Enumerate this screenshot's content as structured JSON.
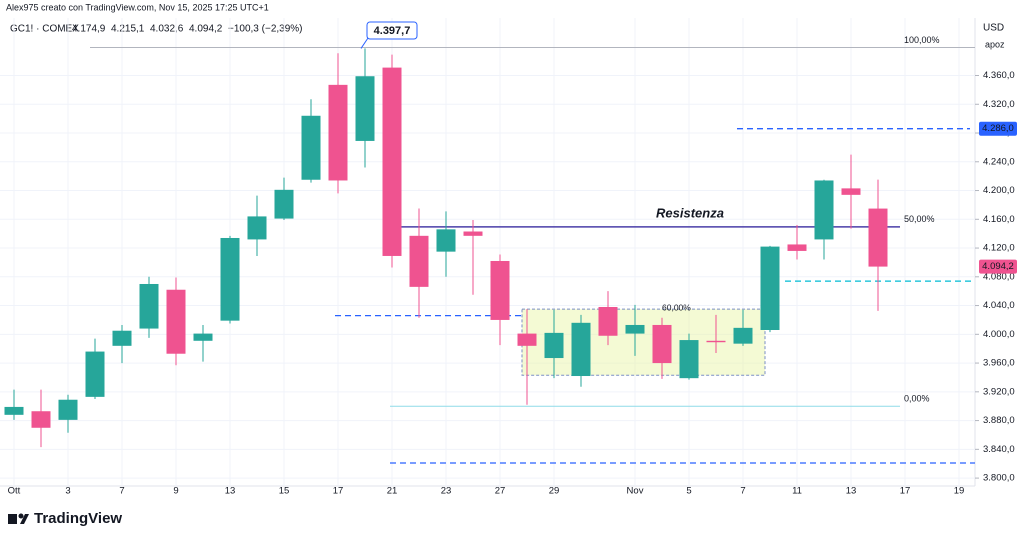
{
  "chart_data": {
    "type": "candlestick",
    "author": "Alex975 creato con TradingView.com, Nov 15, 2025 17:25 UTC+1",
    "title": "GC1! · COMEX",
    "ohlc_text": [
      "4.174,9",
      "4.215,1",
      "4.032,6",
      "4.094,2"
    ],
    "change_text": "−100,3 (−2,39%)",
    "currency": "USD",
    "scale_label": "apoz",
    "brand": "TradingView",
    "up_color": "#26a69a",
    "down_color": "#ef5390",
    "categories": [
      "Ott",
      null,
      "3",
      null,
      "7",
      null,
      "9",
      null,
      "13",
      null,
      "15",
      null,
      "17",
      null,
      "21",
      null,
      "23",
      null,
      "27",
      null,
      "29",
      null,
      null,
      "Nov",
      null,
      "5",
      null,
      "7",
      null,
      "11",
      null,
      "13",
      null,
      "17",
      null,
      "19"
    ],
    "open": [
      3888,
      3893,
      3881,
      3913,
      3984,
      4008,
      4062,
      3991,
      4019,
      4132,
      4161,
      4215,
      4347,
      4269,
      4371,
      4137,
      4115,
      4143,
      4102,
      4001,
      3967,
      3942,
      4038,
      4001,
      4013,
      3939,
      3991,
      3987,
      4006,
      4125,
      4132,
      4203,
      4174.9,
      null,
      null,
      null
    ],
    "high": [
      3923,
      3923,
      3916,
      3994,
      4013,
      4080,
      4079,
      4013,
      4137,
      4193,
      4218,
      4327,
      4391,
      4397.7,
      4389,
      4175,
      4171,
      4159,
      4111,
      4035,
      4034,
      4027,
      4060,
      4041,
      4023,
      4001,
      4027,
      4034,
      4123,
      4152,
      4215,
      4250,
      4215.1,
      null,
      null,
      null
    ],
    "low": [
      3881,
      3843,
      3863,
      3910,
      3960,
      3995,
      3957,
      3962,
      4015,
      4109,
      4159,
      4211,
      4196,
      4232,
      4093,
      4023,
      4080,
      4055,
      3985,
      3902,
      3939,
      3927,
      3985,
      3970,
      3938,
      3937,
      3974,
      3984,
      4003,
      4104,
      4104,
      4147,
      4032.6,
      null,
      null,
      null
    ],
    "close": [
      3899,
      3870,
      3909,
      3976,
      4005,
      4070,
      3973,
      4001,
      4134,
      4164,
      4201,
      4304,
      4214,
      4359,
      4109,
      4066,
      4146,
      4137,
      4020,
      3984,
      4002,
      4016,
      3998,
      4013,
      3960,
      3992,
      3989,
      4009,
      4122,
      4116,
      4214,
      4194,
      4094.2,
      null,
      null,
      null
    ],
    "ylim": [
      3789,
      4440
    ],
    "yticks": [
      {
        "value": 3800,
        "label": "3.800,0"
      },
      {
        "value": 3840,
        "label": "3.840,0"
      },
      {
        "value": 3880,
        "label": "3.880,0"
      },
      {
        "value": 3920,
        "label": "3.920,0"
      },
      {
        "value": 3960,
        "label": "3.960,0"
      },
      {
        "value": 4000,
        "label": "4.000,0"
      },
      {
        "value": 4040,
        "label": "4.040,0"
      },
      {
        "value": 4080,
        "label": "4.080,0"
      },
      {
        "value": 4120,
        "label": "4.120,0"
      },
      {
        "value": 4160,
        "label": "4.160,0"
      },
      {
        "value": 4200,
        "label": "4.200,0"
      },
      {
        "value": 4240,
        "label": "4.240,0"
      },
      {
        "value": 4280,
        "label": "4.280,0"
      },
      {
        "value": 4320,
        "label": "4.320,0"
      },
      {
        "value": 4360,
        "label": "4.360,0"
      }
    ],
    "grid": true,
    "dashed_levels": [
      {
        "value": 4286,
        "color": "#2962ff"
      },
      {
        "value": 4026,
        "color": "#2962ff"
      },
      {
        "value": 3821,
        "color": "#2962ff"
      },
      {
        "value": 4074,
        "color": "#00bcd4"
      }
    ],
    "fib_levels": [
      {
        "value": 3900,
        "label": "0,00%"
      },
      {
        "value": 4149.5,
        "label": "50,00%"
      },
      {
        "value": 4399,
        "label": "100,00%"
      }
    ],
    "resistance_label": "Resistenza",
    "box": {
      "top": 4035,
      "bottom": 3943,
      "label": "60,00%"
    },
    "high_callout": {
      "value": 4397.7,
      "label": "4.397,7"
    },
    "price_tags": [
      {
        "value": 4286,
        "label": "4.286,0",
        "color": "#2962ff"
      },
      {
        "value": 4094.2,
        "label": "4.094,2",
        "color": "#ef5390"
      }
    ]
  }
}
